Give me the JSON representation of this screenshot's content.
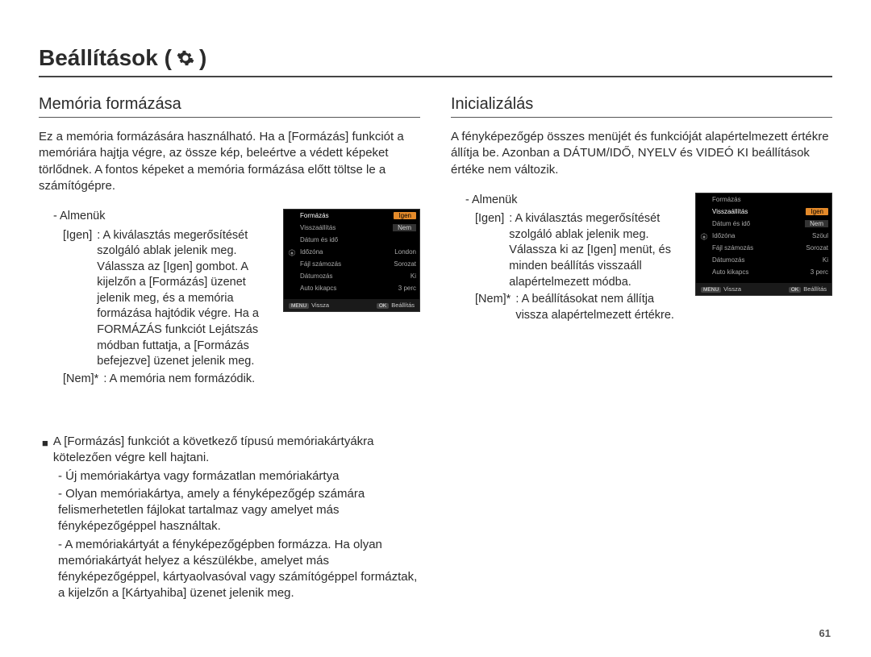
{
  "page": {
    "title": "Beállítások (",
    "title_close": ")",
    "number": "61"
  },
  "left": {
    "heading": "Memória formázása",
    "intro": "Ez a memória formázására használható. Ha a [Formázás] funkciót a memóriára hajtja végre, az össze kép, beleértve a védett képeket törlődnek. A fontos képeket a memória formázása előtt töltse le a számítógépre.",
    "submenu_label": "- Almenük",
    "opts": [
      {
        "key": "[Igen]",
        "val": ": A kiválasztás megerősítését szolgáló ablak jelenik meg. Válassza az [Igen] gombot. A kijelzőn a [Formázás] üzenet jelenik meg, és a memória formázása hajtódik végre. Ha a FORMÁZÁS funkciót Lejátszás módban futtatja, a [Formázás befejezve] üzenet jelenik meg."
      },
      {
        "key": "[Nem]*",
        "val": ": A memória nem formázódik."
      }
    ],
    "note_head": "A [Formázás] funkciót a következő típusú memóriakártyákra kötelezően végre kell hajtani.",
    "notes": [
      "- Új memóriakártya vagy formázatlan memóriakártya",
      "- Olyan memóriakártya, amely a fényképezőgép számára felismerhetetlen fájlokat tartalmaz vagy amelyet más fényképezőgéppel használtak.",
      "- A memóriakártyát a fényképezőgépben formázza. Ha olyan memóriakártyát helyez a készülékbe, amelyet más fényképezőgéppel, kártyaolvasóval vagy számítógéppel formáztak, a kijelzőn a [Kártyahiba] üzenet jelenik meg."
    ]
  },
  "right": {
    "heading": "Inicializálás",
    "intro": "A fényképezőgép összes menüjét és funkcióját alapértelmezett értékre állítja be. Azonban a DÁTUM/IDŐ, NYELV és VIDEÓ KI beállítások értéke nem változik.",
    "submenu_label": "- Almenük",
    "opts": [
      {
        "key": "[Igen]",
        "val": ": A kiválasztás megerősítését szolgáló ablak jelenik meg. Válassza ki az [Igen] menüt, és minden beállítás visszaáll alapértelmezett módba."
      },
      {
        "key": "[Nem]*",
        "val": ": A beállításokat nem állítja vissza alapértelmezett értékre."
      }
    ]
  },
  "cam_menu_left": {
    "highlight_index": 0,
    "rows": [
      {
        "k": "Formázás",
        "v": "Igen",
        "sel": true
      },
      {
        "k": "Visszaállítás",
        "v": "Nem",
        "opt": true
      },
      {
        "k": "Dátum és idő",
        "v": ""
      },
      {
        "k": "Időzóna",
        "v": "London"
      },
      {
        "k": "Fájl számozás",
        "v": "Sorozat"
      },
      {
        "k": "Dátumozás",
        "v": "Ki"
      },
      {
        "k": "Auto kikapcs",
        "v": "3 perc"
      }
    ],
    "footer_left": "Vissza",
    "footer_right": "Beállítás",
    "tag_left": "MENU",
    "tag_right": "OK"
  },
  "cam_menu_right": {
    "highlight_index": 1,
    "rows": [
      {
        "k": "Formázás",
        "v": ""
      },
      {
        "k": "Visszaállítás",
        "v": "Igen",
        "sel": true
      },
      {
        "k": "Dátum és idő",
        "v": "Nem",
        "opt": true
      },
      {
        "k": "Időzóna",
        "v": "Szöul"
      },
      {
        "k": "Fájl számozás",
        "v": "Sorozat"
      },
      {
        "k": "Dátumozás",
        "v": "Ki"
      },
      {
        "k": "Auto kikapcs",
        "v": "3 perc"
      }
    ],
    "footer_left": "Vissza",
    "footer_right": "Beállítás",
    "tag_left": "MENU",
    "tag_right": "OK"
  },
  "style": {
    "accent": "#e48a2a",
    "text": "#2b2b2b",
    "cam_bg": "#000000"
  }
}
